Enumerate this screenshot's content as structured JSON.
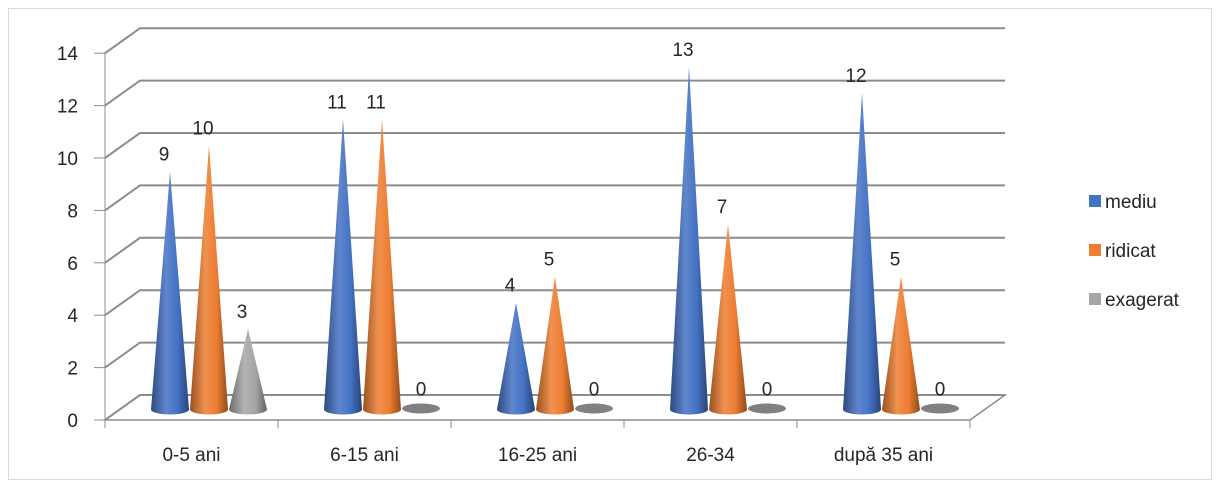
{
  "chart_data": {
    "type": "bar",
    "style": "3d-cone",
    "categories": [
      "0-5 ani",
      "6-15 ani",
      "16-25 ani",
      "26-34",
      "după 35 ani"
    ],
    "series": [
      {
        "name": "mediu",
        "color": "#4472c4",
        "values": [
          9,
          11,
          4,
          13,
          12
        ]
      },
      {
        "name": "ridicat",
        "color": "#ed7d31",
        "values": [
          10,
          11,
          5,
          7,
          5
        ]
      },
      {
        "name": "exagerat",
        "color": "#a5a5a5",
        "values": [
          3,
          0,
          0,
          0,
          0
        ]
      }
    ],
    "ylim": [
      0,
      14
    ],
    "yticks": [
      0,
      2,
      4,
      6,
      8,
      10,
      12,
      14
    ],
    "grid": true,
    "legend_position": "right"
  }
}
